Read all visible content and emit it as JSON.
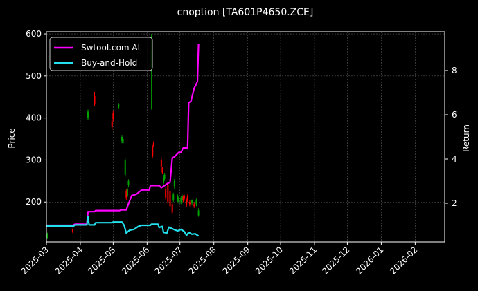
{
  "chart_data": {
    "type": "line",
    "title": "cnoption [TA601P4650.ZCE]",
    "xlabel": "",
    "ylabel": "Price",
    "y2label": "Return",
    "x_ticks": [
      "2025-03",
      "2025-04",
      "2025-05",
      "2025-06",
      "2025-07",
      "2025-08",
      "2025-09",
      "2025-10",
      "2025-11",
      "2025-12",
      "2026-01",
      "2026-02"
    ],
    "xlim": [
      "2025-03-01",
      "2026-02-28"
    ],
    "ylim": [
      105,
      605
    ],
    "y_ticks": [
      200,
      300,
      400,
      500,
      600
    ],
    "y2lim": [
      0.25,
      9.75
    ],
    "y2_ticks": [
      2,
      4,
      6,
      8
    ],
    "grid": true,
    "legend_position": "top-left",
    "colors": {
      "background": "#000000",
      "up": "#00a000",
      "down": "#ff0000",
      "grid": "#5a5a5a"
    },
    "series": [
      {
        "name": "Swtool.com AI",
        "axis": "right",
        "color": "#ff00ff",
        "points": [
          [
            "2025-03-01",
            1.0
          ],
          [
            "2025-03-25",
            1.0
          ],
          [
            "2025-03-27",
            1.05
          ],
          [
            "2025-04-07",
            1.05
          ],
          [
            "2025-04-08",
            1.62
          ],
          [
            "2025-04-14",
            1.62
          ],
          [
            "2025-04-15",
            1.67
          ],
          [
            "2025-05-07",
            1.67
          ],
          [
            "2025-05-08",
            1.7
          ],
          [
            "2025-05-13",
            1.7
          ],
          [
            "2025-05-15",
            1.98
          ],
          [
            "2025-05-18",
            2.35
          ],
          [
            "2025-05-22",
            2.4
          ],
          [
            "2025-05-27",
            2.6
          ],
          [
            "2025-06-03",
            2.6
          ],
          [
            "2025-06-04",
            2.8
          ],
          [
            "2025-06-12",
            2.8
          ],
          [
            "2025-06-14",
            2.7
          ],
          [
            "2025-06-20",
            2.9
          ],
          [
            "2025-06-22",
            2.95
          ],
          [
            "2025-06-24",
            4.05
          ],
          [
            "2025-06-26",
            4.1
          ],
          [
            "2025-06-30",
            4.3
          ],
          [
            "2025-07-02",
            4.3
          ],
          [
            "2025-07-04",
            4.5
          ],
          [
            "2025-07-08",
            4.5
          ],
          [
            "2025-07-09",
            6.55
          ],
          [
            "2025-07-11",
            6.6
          ],
          [
            "2025-07-14",
            7.2
          ],
          [
            "2025-07-17",
            7.5
          ],
          [
            "2025-07-18",
            9.2
          ]
        ]
      },
      {
        "name": "Buy-and-Hold",
        "axis": "right",
        "color": "#22e0ee",
        "points": [
          [
            "2025-03-01",
            0.97
          ],
          [
            "2025-03-26",
            0.97
          ],
          [
            "2025-03-27",
            1.02
          ],
          [
            "2025-04-07",
            1.02
          ],
          [
            "2025-04-08",
            1.4
          ],
          [
            "2025-04-09",
            1.02
          ],
          [
            "2025-04-14",
            1.02
          ],
          [
            "2025-04-15",
            1.12
          ],
          [
            "2025-04-30",
            1.12
          ],
          [
            "2025-05-01",
            1.15
          ],
          [
            "2025-05-09",
            1.15
          ],
          [
            "2025-05-11",
            1.0
          ],
          [
            "2025-05-13",
            0.65
          ],
          [
            "2025-05-16",
            0.78
          ],
          [
            "2025-05-20",
            0.82
          ],
          [
            "2025-05-24",
            0.95
          ],
          [
            "2025-05-27",
            1.0
          ],
          [
            "2025-06-04",
            1.0
          ],
          [
            "2025-06-05",
            1.05
          ],
          [
            "2025-06-11",
            1.05
          ],
          [
            "2025-06-12",
            0.9
          ],
          [
            "2025-06-15",
            0.95
          ],
          [
            "2025-06-16",
            0.68
          ],
          [
            "2025-06-19",
            0.65
          ],
          [
            "2025-06-21",
            0.92
          ],
          [
            "2025-06-26",
            0.8
          ],
          [
            "2025-06-29",
            0.75
          ],
          [
            "2025-07-02",
            0.82
          ],
          [
            "2025-07-05",
            0.72
          ],
          [
            "2025-07-07",
            0.55
          ],
          [
            "2025-07-09",
            0.68
          ],
          [
            "2025-07-12",
            0.6
          ],
          [
            "2025-07-15",
            0.62
          ],
          [
            "2025-07-18",
            0.52
          ]
        ]
      }
    ],
    "candles": [
      [
        "2025-03-02",
        115,
        125,
        112,
        127
      ],
      [
        "2025-03-25",
        135,
        128,
        126,
        137
      ],
      [
        "2025-04-08",
        400,
        415,
        396,
        420
      ],
      [
        "2025-04-14",
        452,
        432,
        428,
        462
      ],
      [
        "2025-04-30",
        392,
        378,
        372,
        398
      ],
      [
        "2025-05-01",
        412,
        398,
        392,
        418
      ],
      [
        "2025-05-06",
        425,
        432,
        422,
        435
      ],
      [
        "2025-05-09",
        345,
        355,
        340,
        358
      ],
      [
        "2025-05-10",
        340,
        350,
        336,
        352
      ],
      [
        "2025-05-12",
        265,
        300,
        260,
        305
      ],
      [
        "2025-05-13",
        225,
        210,
        205,
        230
      ],
      [
        "2025-05-14",
        215,
        230,
        212,
        234
      ],
      [
        "2025-05-15",
        240,
        250,
        236,
        254
      ],
      [
        "2025-06-05",
        520,
        560,
        420,
        600
      ],
      [
        "2025-06-06",
        330,
        310,
        305,
        335
      ],
      [
        "2025-06-07",
        340,
        333,
        330,
        345
      ],
      [
        "2025-06-14",
        300,
        285,
        278,
        306
      ],
      [
        "2025-06-15",
        280,
        270,
        266,
        284
      ],
      [
        "2025-06-16",
        245,
        260,
        240,
        265
      ],
      [
        "2025-06-17",
        255,
        265,
        250,
        268
      ],
      [
        "2025-06-18",
        230,
        210,
        205,
        236
      ],
      [
        "2025-06-20",
        242,
        200,
        195,
        248
      ],
      [
        "2025-06-22",
        225,
        190,
        185,
        230
      ],
      [
        "2025-06-24",
        195,
        175,
        170,
        200
      ],
      [
        "2025-06-25",
        205,
        218,
        200,
        222
      ],
      [
        "2025-06-26",
        238,
        250,
        232,
        255
      ],
      [
        "2025-06-29",
        205,
        215,
        200,
        218
      ],
      [
        "2025-06-30",
        200,
        208,
        196,
        212
      ],
      [
        "2025-07-02",
        200,
        210,
        195,
        214
      ],
      [
        "2025-07-03",
        205,
        215,
        200,
        218
      ],
      [
        "2025-07-04",
        212,
        205,
        200,
        216
      ],
      [
        "2025-07-05",
        215,
        208,
        203,
        218
      ],
      [
        "2025-07-07",
        205,
        192,
        188,
        208
      ],
      [
        "2025-07-08",
        215,
        205,
        200,
        218
      ],
      [
        "2025-07-10",
        200,
        195,
        190,
        205
      ],
      [
        "2025-07-12",
        198,
        204,
        192,
        206
      ],
      [
        "2025-07-14",
        195,
        190,
        186,
        200
      ],
      [
        "2025-07-16",
        195,
        205,
        190,
        208
      ],
      [
        "2025-07-18",
        168,
        180,
        165,
        185
      ]
    ]
  }
}
